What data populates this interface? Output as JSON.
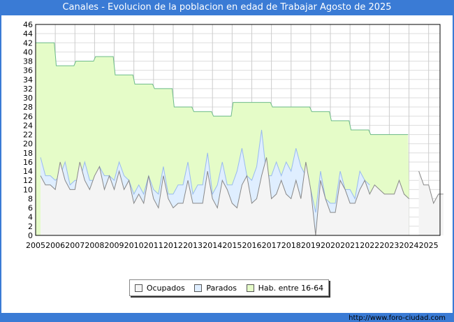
{
  "chart_data": {
    "type": "area",
    "title": "Canales - Evolucion de la poblacion en edad de Trabajar Agosto de 2025",
    "xlabel": "",
    "ylabel": "",
    "ylim": [
      0,
      46
    ],
    "xlim": [
      2005,
      2025.58
    ],
    "yticks": [
      "0",
      "2",
      "4",
      "6",
      "8",
      "10",
      "12",
      "14",
      "16",
      "18",
      "20",
      "22",
      "24",
      "26",
      "28",
      "30",
      "32",
      "34",
      "36",
      "38",
      "40",
      "42",
      "44",
      "46"
    ],
    "xticks": [
      "2005",
      "2006",
      "2007",
      "2008",
      "2009",
      "2010",
      "2011",
      "2012",
      "2013",
      "2014",
      "2015",
      "2016",
      "2017",
      "2018",
      "2019",
      "2020",
      "2021",
      "2022",
      "2023",
      "2024",
      "2025"
    ],
    "grid": true,
    "legend_position": "bottom",
    "colors": {
      "hab": "#e5fcc8",
      "hab_line": "#6dbb8a",
      "parados": "#dfeeff",
      "parados_line": "#99bbee",
      "ocupados": "#f4f4f4",
      "ocupados_line": "#888888"
    },
    "series": [
      {
        "name": "Hab. entre 16-64",
        "steps": [
          [
            2005,
            42
          ],
          [
            2006,
            37
          ],
          [
            2007,
            38
          ],
          [
            2008,
            39
          ],
          [
            2009,
            35
          ],
          [
            2010,
            33
          ],
          [
            2011,
            32
          ],
          [
            2012,
            28
          ],
          [
            2013,
            27
          ],
          [
            2014,
            26
          ],
          [
            2015,
            29
          ],
          [
            2016,
            29
          ],
          [
            2017,
            28
          ],
          [
            2018,
            28
          ],
          [
            2019,
            27
          ],
          [
            2020,
            25
          ],
          [
            2021,
            23
          ],
          [
            2022,
            22
          ],
          [
            2023,
            22
          ]
        ],
        "end": 2024
      },
      {
        "name": "Parados",
        "start": 2005.25,
        "step": 0.25,
        "values": [
          17,
          13,
          13,
          12,
          13,
          16,
          11,
          12,
          12,
          16,
          12,
          12,
          15,
          13,
          13,
          12,
          16,
          13,
          12,
          9,
          11,
          9,
          13,
          10,
          9,
          15,
          9,
          9,
          11,
          11,
          16,
          9,
          11,
          11,
          18,
          9,
          11,
          16,
          11,
          11,
          14,
          19,
          13,
          12,
          15,
          23,
          13,
          13,
          16,
          13,
          16,
          14,
          19,
          15,
          13,
          10,
          5,
          14,
          8,
          7,
          7,
          14,
          10,
          10,
          8,
          14,
          12,
          11
        ]
      },
      {
        "name": "Ocupados",
        "start": 2005.25,
        "step": 0.25,
        "values": [
          13,
          11,
          11,
          10,
          16,
          12,
          10,
          10,
          16,
          12,
          10,
          13,
          15,
          10,
          13,
          10,
          14,
          10,
          12,
          7,
          9,
          7,
          13,
          8,
          6,
          13,
          8,
          6,
          7,
          7,
          12,
          7,
          7,
          7,
          14,
          8,
          6,
          12,
          10,
          7,
          6,
          11,
          13,
          7,
          8,
          13,
          17,
          8,
          9,
          12,
          9,
          8,
          12,
          8,
          16,
          10,
          0,
          12,
          8,
          5,
          5,
          12,
          10,
          7,
          7,
          10,
          12,
          9,
          11,
          10,
          9,
          9,
          9,
          12,
          9,
          8,
          null,
          14,
          11,
          11,
          7,
          9,
          9
        ]
      }
    ]
  },
  "legend": [
    "Ocupados",
    "Parados",
    "Hab. entre 16-64"
  ],
  "footer": "http://www.foro-ciudad.com"
}
